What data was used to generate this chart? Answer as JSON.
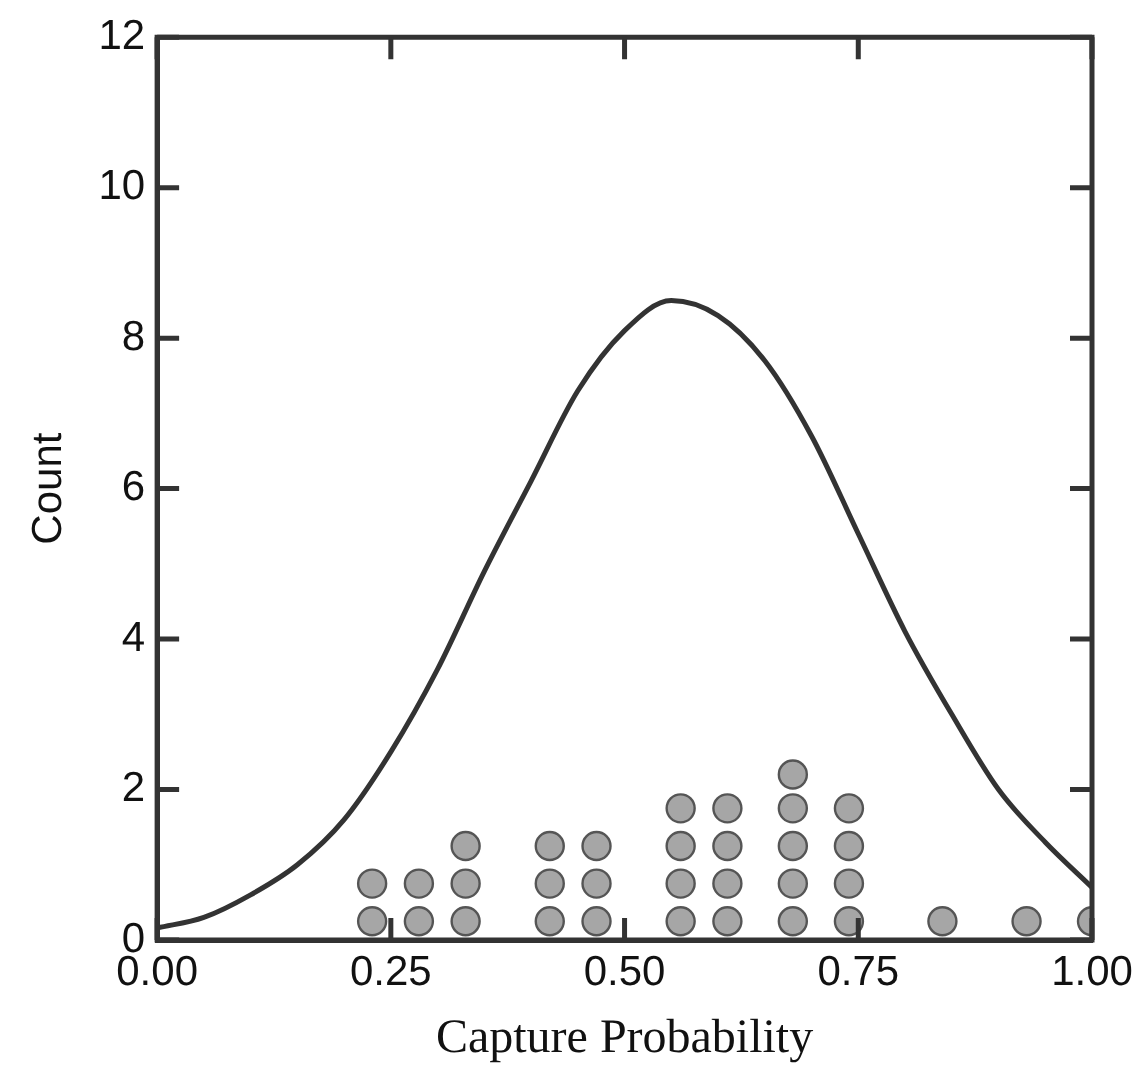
{
  "chart_data": {
    "type": "scatter",
    "xlabel": "Capture Probability",
    "ylabel": "Count",
    "xlim": [
      0,
      1
    ],
    "ylim": [
      0,
      12
    ],
    "xticks": [
      {
        "value": 0,
        "label": "0.00"
      },
      {
        "value": 0.25,
        "label": "0.25"
      },
      {
        "value": 0.5,
        "label": "0.50"
      },
      {
        "value": 0.75,
        "label": "0.75"
      },
      {
        "value": 1,
        "label": "1.00"
      }
    ],
    "yticks": [
      0,
      2,
      4,
      6,
      8,
      10,
      12
    ],
    "grid": false,
    "legend": false,
    "marker": "circle",
    "series": [
      {
        "color": "#a6a6a6",
        "x": [
          0.23,
          0.23,
          0.28,
          0.28,
          0.33,
          0.33,
          0.33,
          0.42,
          0.42,
          0.42,
          0.47,
          0.47,
          0.47,
          0.56,
          0.56,
          0.56,
          0.56,
          0.61,
          0.61,
          0.61,
          0.61,
          0.68,
          0.68,
          0.68,
          0.68,
          0.68,
          0.74,
          0.74,
          0.74,
          0.74,
          0.84,
          0.93,
          1.0
        ],
        "values": [
          0.25,
          0.75,
          0.25,
          0.75,
          0.25,
          0.75,
          1.25,
          0.25,
          0.75,
          1.25,
          0.25,
          0.75,
          1.25,
          0.25,
          0.75,
          1.25,
          1.75,
          0.25,
          0.75,
          1.25,
          1.75,
          0.25,
          0.75,
          1.25,
          1.75,
          2.2,
          0.25,
          0.75,
          1.25,
          1.75,
          0.25,
          0.25,
          0.25
        ]
      },
      {
        "type": "line",
        "color": "#333333",
        "marker": "none",
        "line_style": "solid",
        "x": [
          0,
          0.05,
          0.1,
          0.15,
          0.2,
          0.25,
          0.3,
          0.35,
          0.4,
          0.45,
          0.5,
          0.55,
          0.6,
          0.65,
          0.7,
          0.75,
          0.8,
          0.85,
          0.9,
          0.95,
          1.0
        ],
        "values": [
          0.16,
          0.3,
          0.6,
          1.0,
          1.6,
          2.5,
          3.6,
          4.9,
          6.1,
          7.3,
          8.1,
          8.5,
          8.3,
          7.7,
          6.7,
          5.4,
          4.1,
          3.0,
          2.0,
          1.3,
          0.7
        ]
      }
    ]
  }
}
